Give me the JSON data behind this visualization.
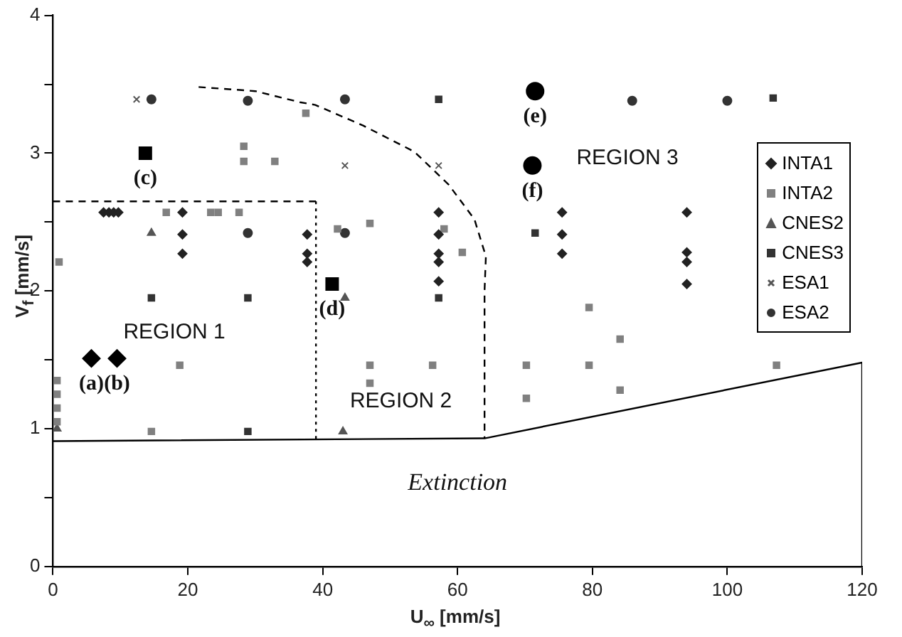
{
  "chart_data": {
    "type": "scatter",
    "xlabel": "U$_{∞}$ [mm/s]",
    "ylabel": "V$_{f}$ [mm/s]",
    "xlim": [
      0,
      120
    ],
    "xticks": [
      0,
      20,
      40,
      60,
      80,
      100,
      120
    ],
    "ylim": [
      0,
      4
    ],
    "yticks": [
      0,
      {
        "value": 0.5,
        "label": null
      },
      1,
      {
        "value": 1.5,
        "label": null
      },
      2,
      {
        "value": 2.5,
        "label": null
      },
      3,
      {
        "value": 3.5,
        "label": null
      },
      4
    ],
    "grid": false,
    "legend": "right",
    "series": [
      {
        "name": "INTA1",
        "color": "#222222",
        "marker": "diamond",
        "x": [
          7.5,
          8.3,
          9,
          9.7,
          19.2,
          19.2,
          19.2,
          37.7,
          37.7,
          37.7,
          57.2,
          57.2,
          57.2,
          57.2,
          57.2,
          75.5,
          75.5,
          75.5,
          94,
          94,
          94,
          94
        ],
        "values": [
          2.57,
          2.57,
          2.57,
          2.57,
          2.57,
          2.41,
          2.27,
          2.41,
          2.27,
          2.21,
          2.57,
          2.41,
          2.27,
          2.21,
          2.07,
          2.57,
          2.41,
          2.27,
          2.57,
          2.28,
          2.21,
          2.05
        ]
      },
      {
        "name": "INTA2",
        "color": "#808080",
        "marker": "square",
        "x": [
          37.5,
          28.3,
          28.3,
          32.9,
          16.8,
          23.4,
          24.5,
          27.6,
          0.9,
          18.8,
          47,
          47,
          56.3,
          0.6,
          0.6,
          0.6,
          0.6,
          42.2,
          47,
          58,
          60.7,
          79.5,
          84.1,
          70.2,
          70.2,
          79.5,
          84.1,
          107.3,
          14.6
        ],
        "values": [
          3.29,
          3.05,
          2.94,
          2.94,
          2.57,
          2.57,
          2.57,
          2.57,
          2.21,
          1.46,
          1.46,
          1.33,
          1.46,
          1.35,
          1.25,
          1.15,
          1.05,
          2.45,
          2.49,
          2.45,
          2.28,
          1.88,
          1.65,
          1.46,
          1.22,
          1.46,
          1.28,
          1.46,
          0.98
        ]
      },
      {
        "name": "CNES2",
        "color": "#555555",
        "marker": "triangle",
        "x": [
          0.6,
          43,
          14.6,
          43.3
        ],
        "values": [
          1.0,
          0.98,
          2.42,
          1.95
        ]
      },
      {
        "name": "CNES3",
        "color": "#333333",
        "marker": "square",
        "x": [
          28.9,
          14.6,
          28.9,
          57.2,
          71.5,
          106.8,
          57.2
        ],
        "values": [
          1.95,
          1.95,
          0.98,
          1.95,
          2.42,
          3.4,
          3.39
        ]
      },
      {
        "name": "ESA1",
        "color": "#555555",
        "marker": "cross",
        "x": [
          12.4,
          43.3,
          57.2
        ],
        "values": [
          3.39,
          2.91,
          2.91
        ]
      },
      {
        "name": "ESA2",
        "color": "#333333",
        "marker": "circle",
        "x": [
          14.6,
          28.9,
          43.3,
          28.9,
          43.3,
          85.9,
          100
        ],
        "values": [
          3.39,
          3.38,
          3.39,
          2.42,
          2.42,
          3.38,
          3.38
        ]
      },
      {
        "color": "#000000",
        "marker": "diamond",
        "x": [
          5.7,
          9.5
        ],
        "values": [
          1.51,
          1.51
        ],
        "value_labels": [
          "(a)",
          "(b)"
        ]
      },
      {
        "color": "#000000",
        "marker": "square",
        "x": [
          13.7,
          41.4
        ],
        "values": [
          3.0,
          2.05
        ],
        "value_labels": [
          "(c)",
          "(d)"
        ]
      },
      {
        "color": "#000000",
        "marker": "circle",
        "x": [
          71.5,
          71.1
        ],
        "values": [
          3.45,
          2.91
        ],
        "value_labels": [
          "(e)",
          "(f)"
        ]
      },
      {
        "type": "line",
        "color": "#000000",
        "marker": "none",
        "line_style": "dashed",
        "x": [
          0,
          39
        ],
        "values": [
          2.65,
          2.65
        ]
      },
      {
        "type": "line",
        "color": "#000000",
        "marker": "none",
        "line_style": "dotted",
        "x": [
          39,
          39
        ],
        "values": [
          2.65,
          0.91
        ]
      },
      {
        "type": "line",
        "color": "#000000",
        "marker": "none",
        "line_style": "dashed",
        "x": [
          21.6,
          30,
          36.6,
          38.9,
          46,
          53.6,
          58.7,
          62.5,
          64.2,
          64,
          64
        ],
        "values": [
          3.48,
          3.45,
          3.37,
          3.35,
          3.2,
          3.01,
          2.77,
          2.52,
          2.25,
          2.0,
          0.93
        ]
      },
      {
        "type": "line",
        "color": "#000000",
        "marker": "none",
        "line_style": "solid",
        "x": [
          0,
          64,
          120,
          120
        ],
        "values": [
          0.91,
          0.93,
          1.48,
          0
        ]
      }
    ],
    "annotations": [
      "REGION 1",
      "REGION 2",
      "REGION 3",
      "Extinction"
    ]
  }
}
